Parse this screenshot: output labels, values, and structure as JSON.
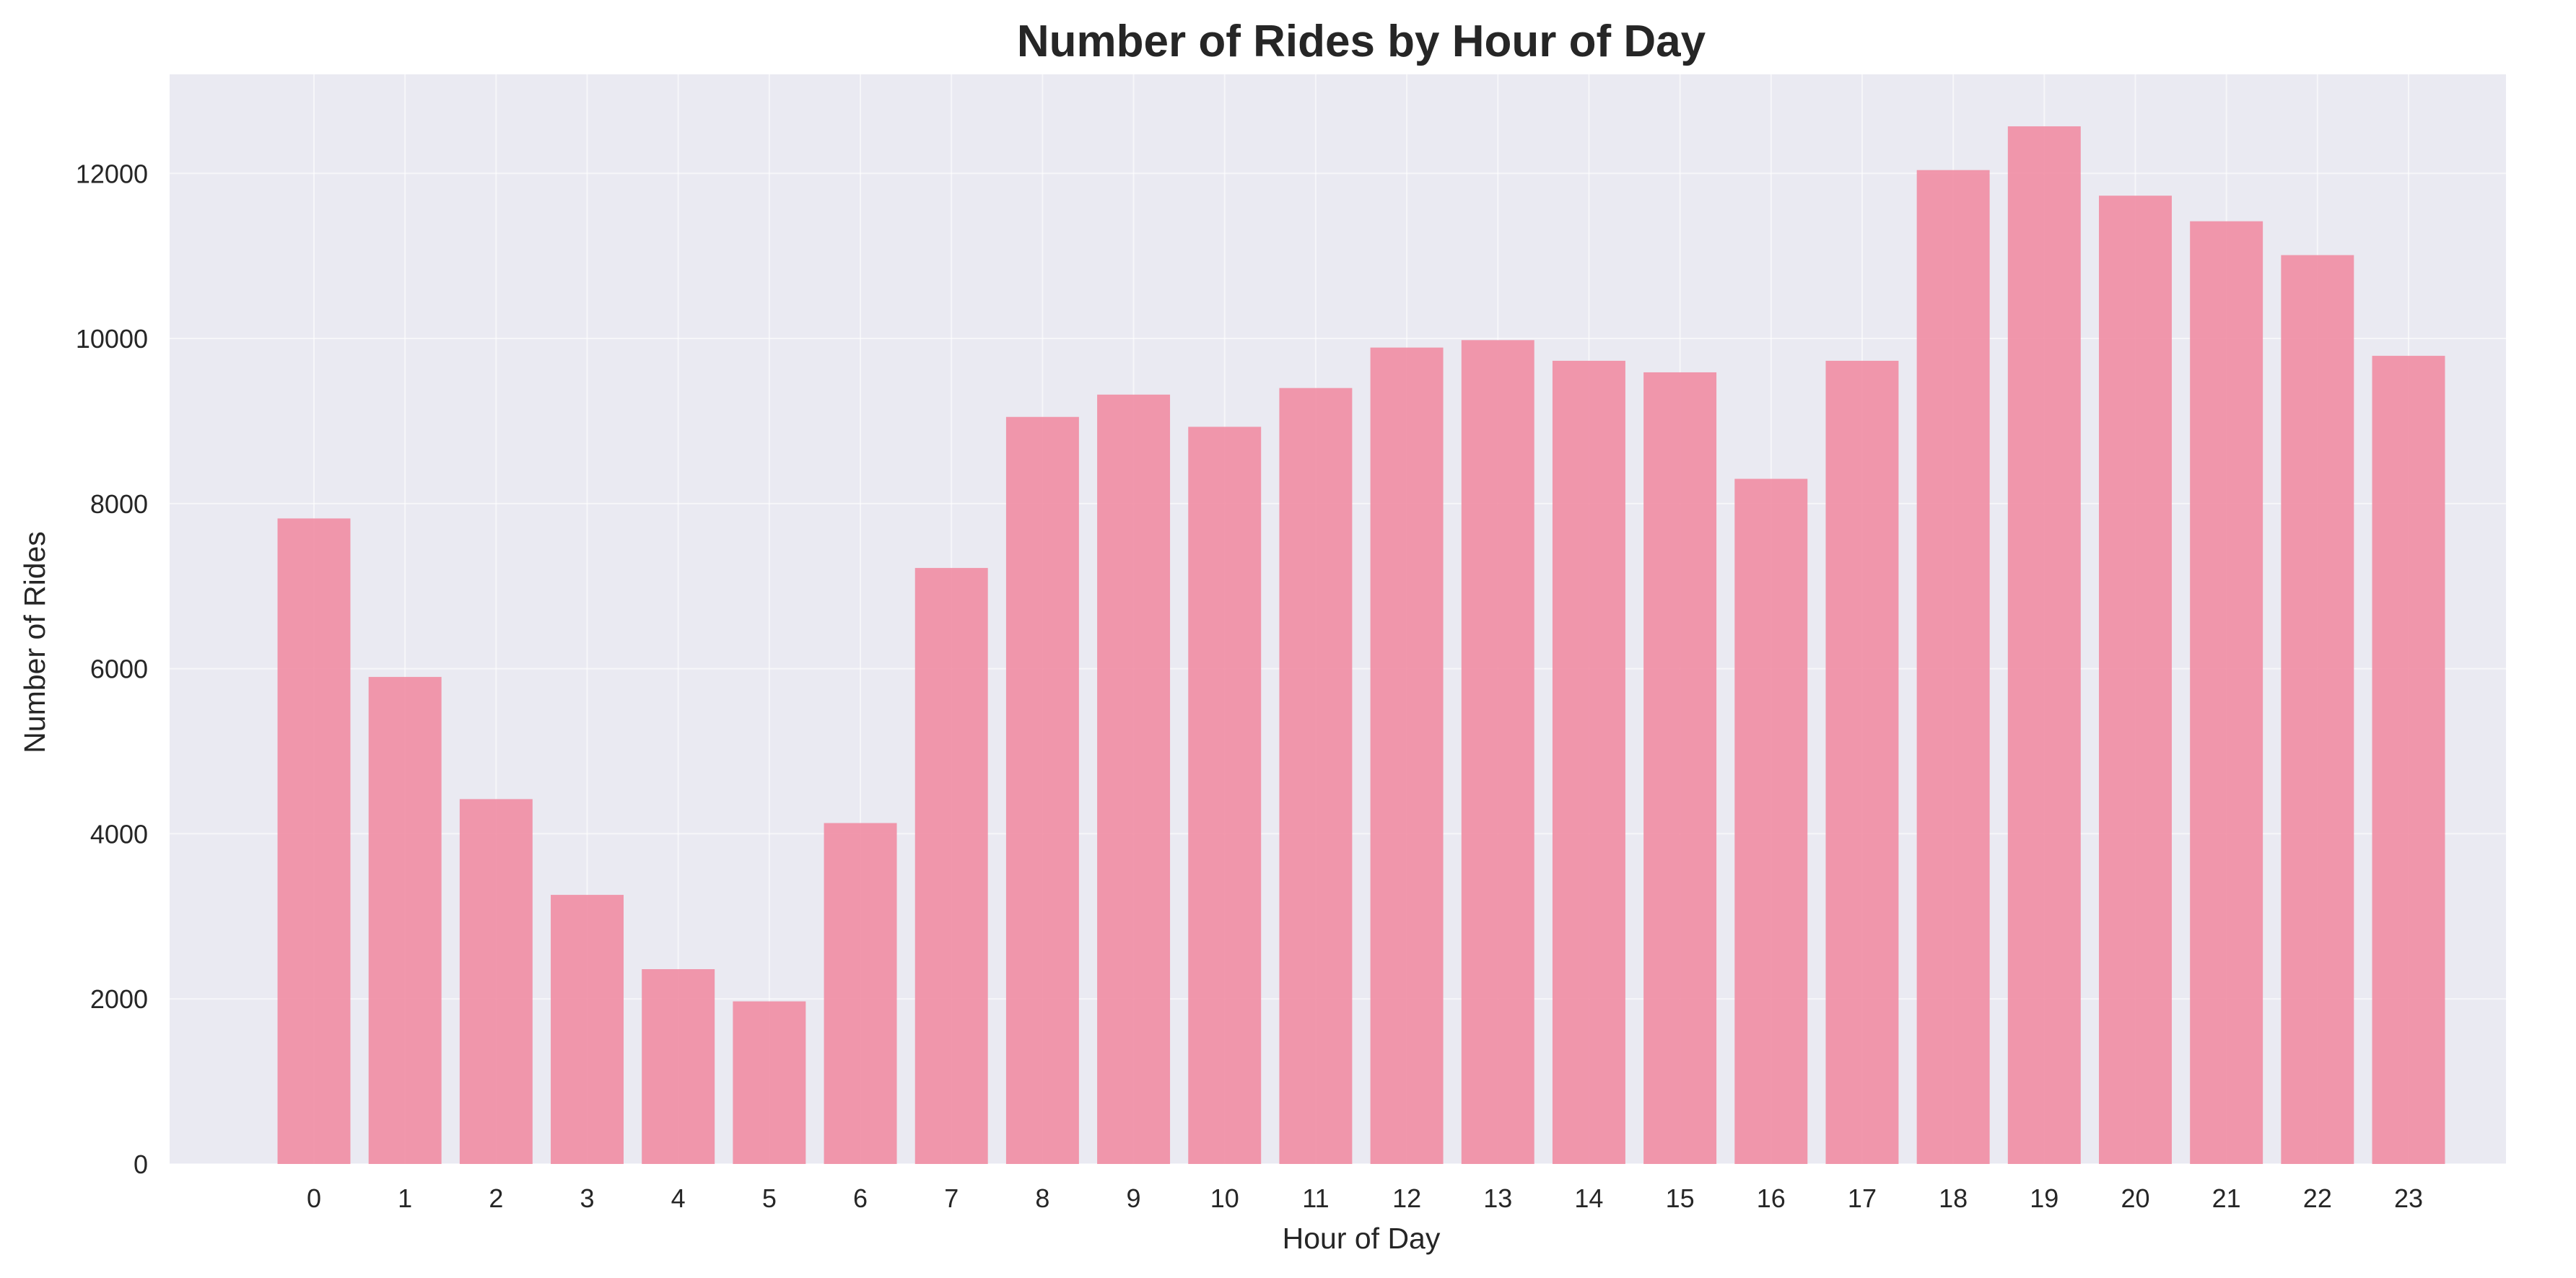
{
  "chart_data": {
    "type": "bar",
    "title": "Number of Rides by Hour of Day",
    "xlabel": "Hour of Day",
    "ylabel": "Number of Rides",
    "categories": [
      "0",
      "1",
      "2",
      "3",
      "4",
      "5",
      "6",
      "7",
      "8",
      "9",
      "10",
      "11",
      "12",
      "13",
      "14",
      "15",
      "16",
      "17",
      "18",
      "19",
      "20",
      "21",
      "22",
      "23"
    ],
    "values": [
      7820,
      5900,
      4420,
      3260,
      2360,
      1970,
      4130,
      7220,
      9050,
      9320,
      8930,
      9400,
      9890,
      9980,
      9730,
      9590,
      8300,
      9730,
      12040,
      12570,
      11730,
      11420,
      11010,
      9790
    ],
    "yticks": [
      0,
      2000,
      4000,
      6000,
      8000,
      10000,
      12000
    ],
    "ylim": [
      0,
      13200
    ],
    "grid": true,
    "bar_color": "#f08aa0",
    "plot_background": "#eaeaf2"
  }
}
